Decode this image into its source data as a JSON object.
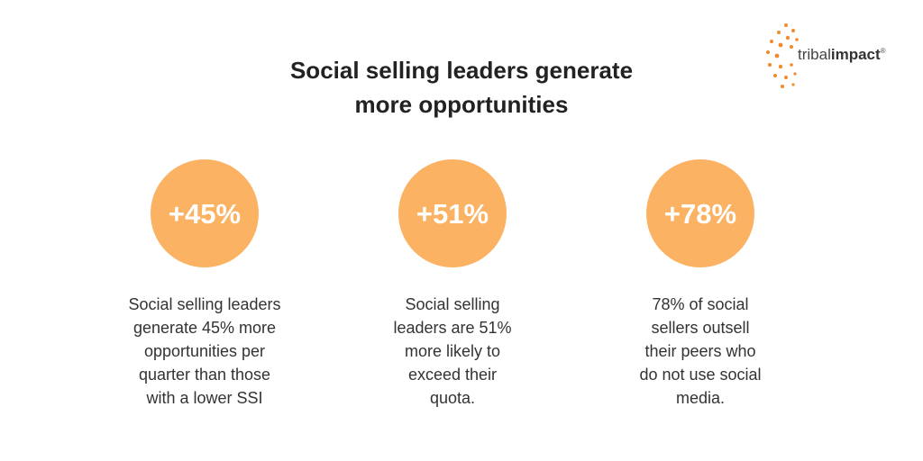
{
  "header": {
    "title_lines": [
      "Social selling leaders generate",
      "more opportunities"
    ]
  },
  "logo": {
    "word1": "tribal",
    "word2": "impact",
    "mark": "®"
  },
  "stats": [
    {
      "value": "+45%",
      "description_lines": [
        "Social selling leaders",
        "generate 45% more",
        "opportunities per",
        "quarter than those",
        "with a lower SSI"
      ]
    },
    {
      "value": "+51%",
      "description_lines": [
        "Social selling",
        "leaders are 51%",
        "more likely to",
        "exceed their",
        "quota."
      ]
    },
    {
      "value": "+78%",
      "description_lines": [
        "78% of social",
        "sellers outsell",
        "their peers who",
        "do not use social",
        "media."
      ]
    }
  ]
}
